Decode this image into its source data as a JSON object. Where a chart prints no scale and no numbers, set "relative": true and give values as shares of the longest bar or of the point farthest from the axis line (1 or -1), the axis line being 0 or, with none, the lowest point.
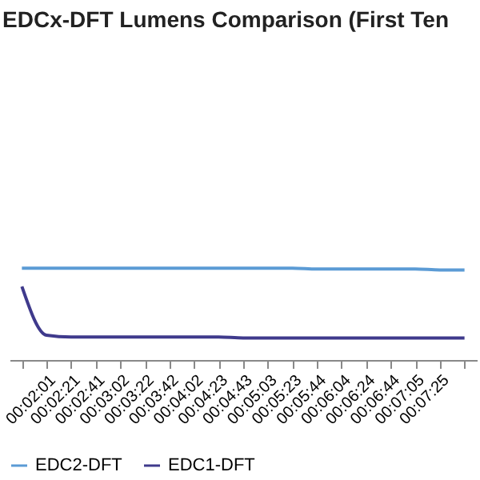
{
  "chart_data": {
    "type": "line",
    "title": "EDCx-DFT Lumens Comparison (First Ten",
    "relative": true,
    "legend": "bottom",
    "marker": "none",
    "line_style": "solid",
    "categories": [
      null,
      "00:02:01",
      "00:02:21",
      "00:02:41",
      "00:03:02",
      "00:03:22",
      "00:03:42",
      "00:04:02",
      "00:04:23",
      "00:04:43",
      "00:05:03",
      "00:05:23",
      "00:05:44",
      "00:06:04",
      "00:06:24",
      "00:06:44",
      "00:07:05",
      "00:07:25",
      null
    ],
    "series": [
      {
        "name": "EDC2-DFT",
        "color": "#5b9bd5",
        "values": [
          1,
          1,
          1,
          1,
          1,
          1,
          1,
          1,
          1,
          1,
          1,
          1,
          0.99,
          0.99,
          0.99,
          0.99,
          0.99,
          0.98,
          0.98
        ]
      },
      {
        "name": "EDC1-DFT",
        "color": "#3f3a8c",
        "values": [
          0.8,
          0.27,
          0.25,
          0.25,
          0.25,
          0.25,
          0.25,
          0.25,
          0.25,
          0.24,
          0.24,
          0.24,
          0.24,
          0.24,
          0.24,
          0.24,
          0.24,
          0.24,
          0.24
        ]
      }
    ]
  }
}
